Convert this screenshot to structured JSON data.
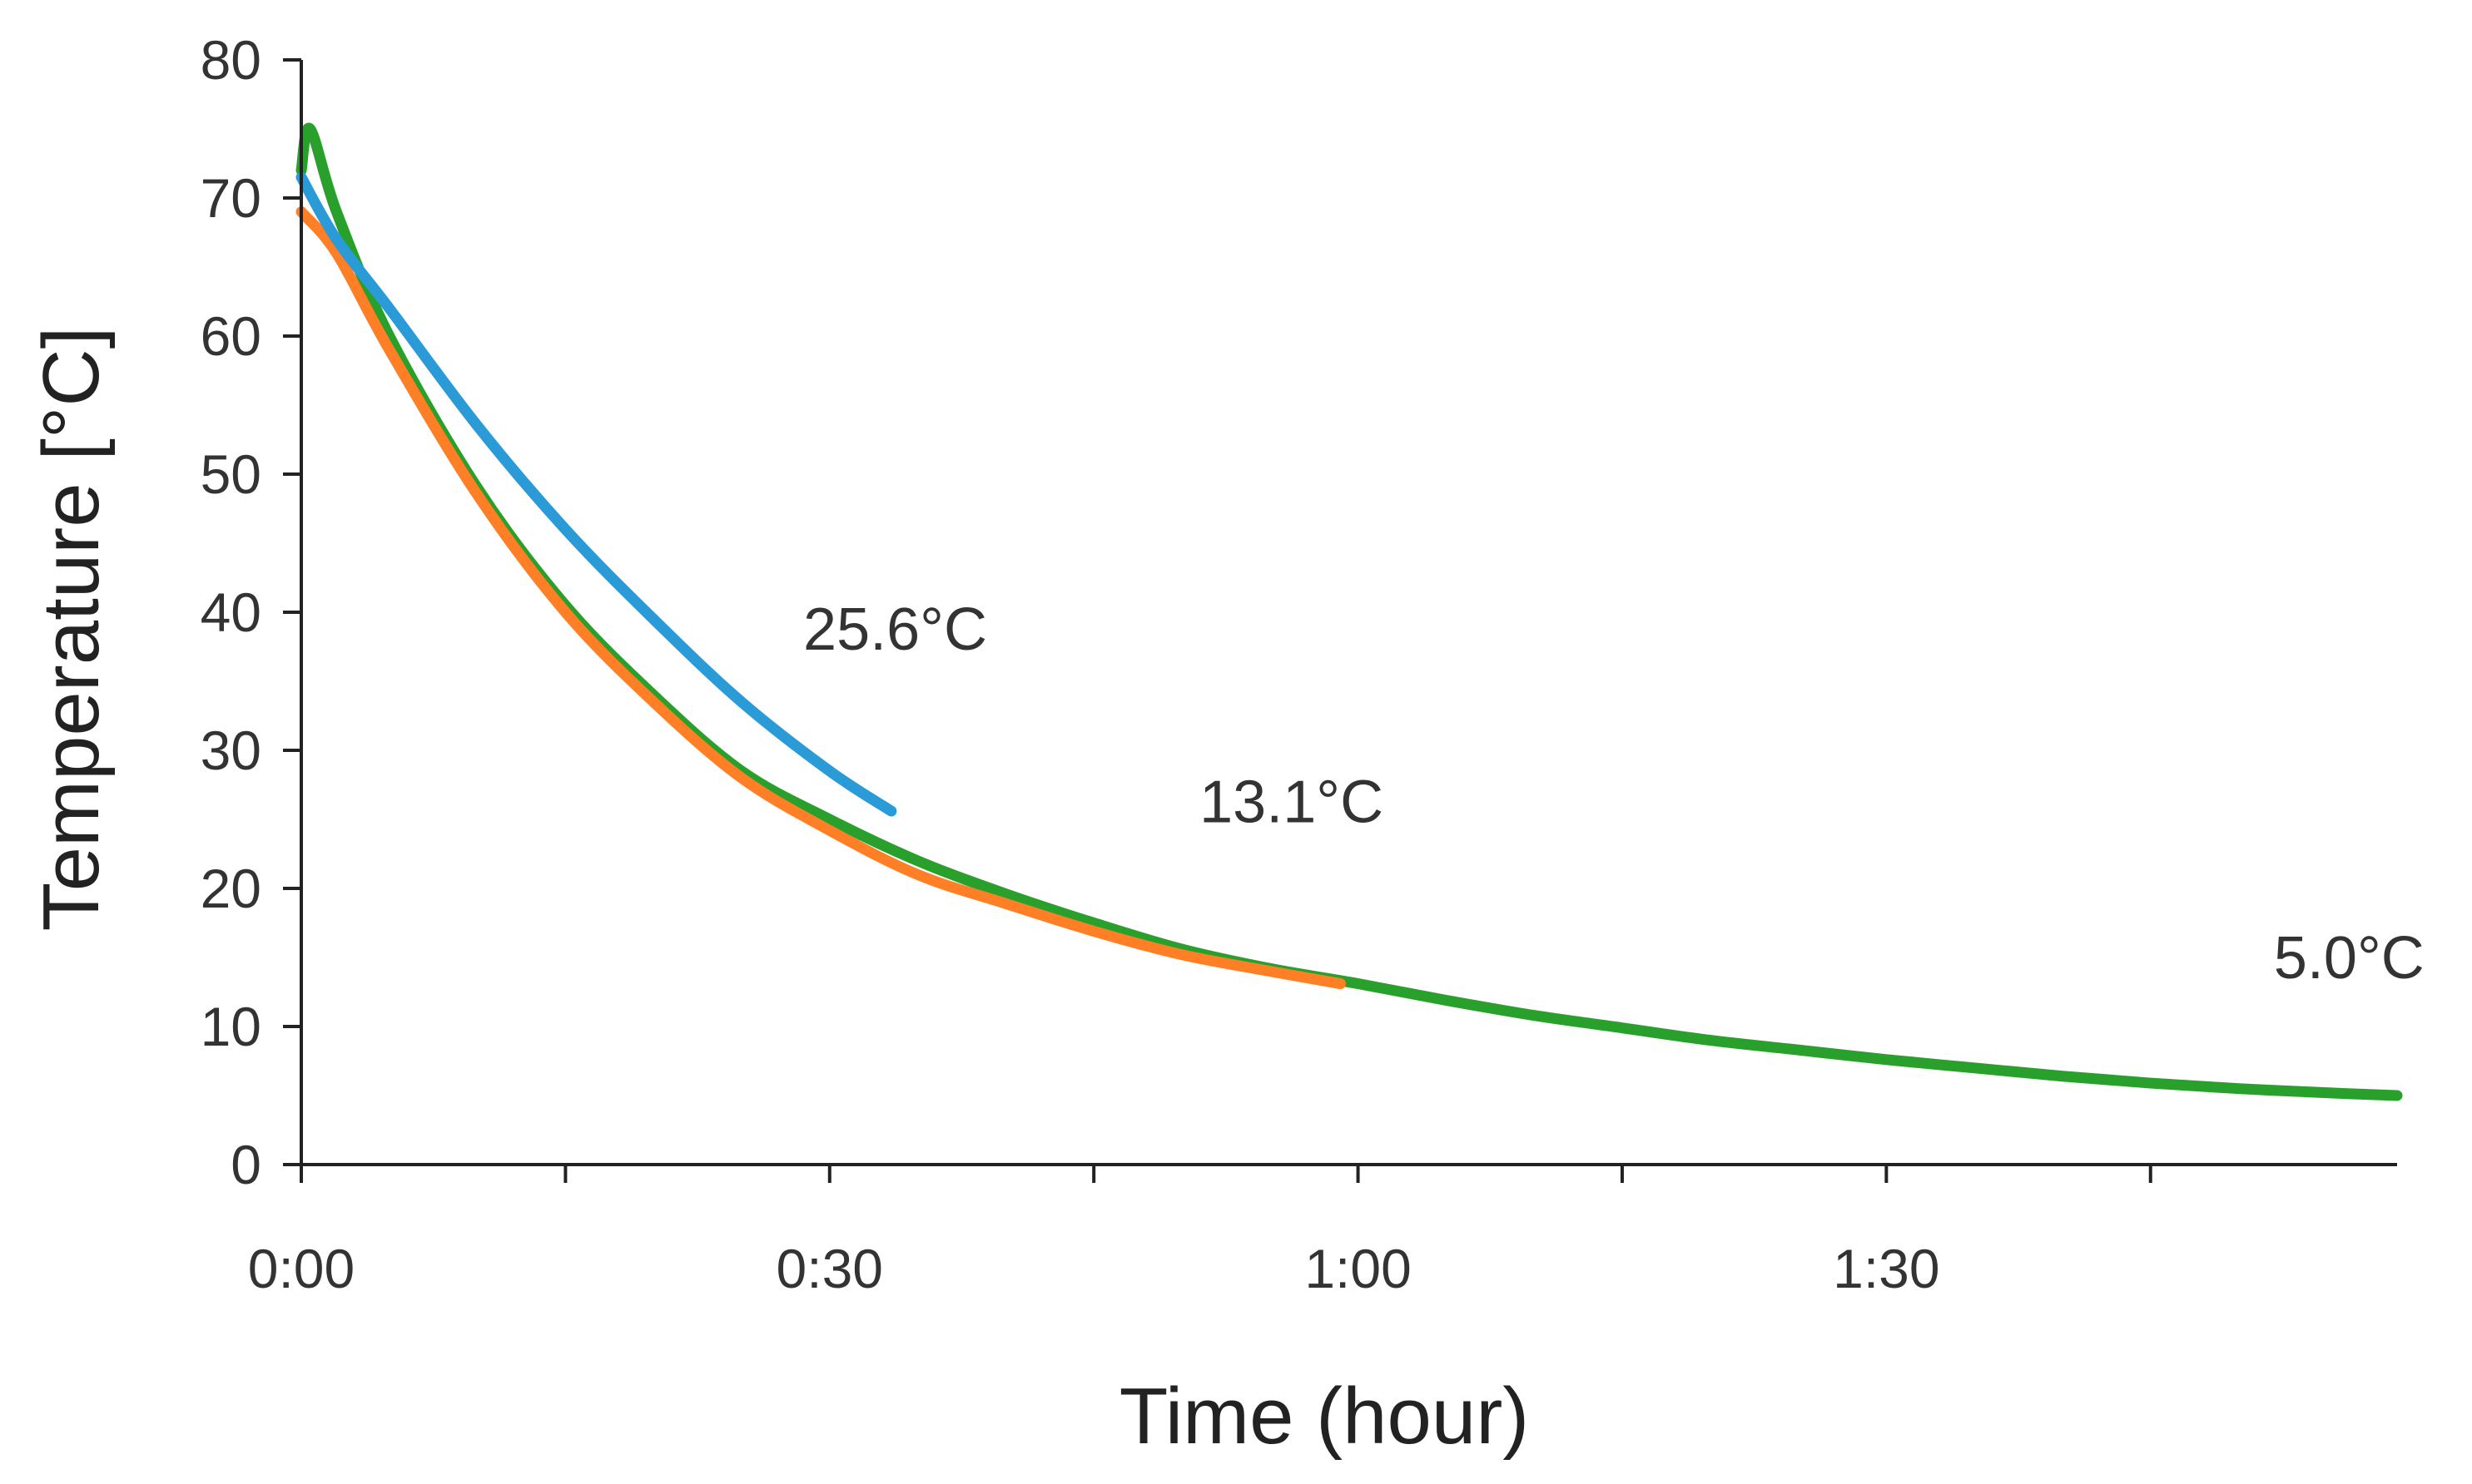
{
  "chart_data": {
    "type": "line",
    "title": "",
    "xlabel": "Time (hour)",
    "ylabel": "Temperature [°C]",
    "x_unit": "minutes",
    "xlim": [
      0,
      119
    ],
    "ylim": [
      0,
      80
    ],
    "x_ticks": [
      {
        "value": 0,
        "label": "0:00"
      },
      {
        "value": 15,
        "label": ""
      },
      {
        "value": 30,
        "label": "0:30"
      },
      {
        "value": 45,
        "label": ""
      },
      {
        "value": 60,
        "label": "1:00"
      },
      {
        "value": 75,
        "label": ""
      },
      {
        "value": 90,
        "label": "1:30"
      },
      {
        "value": 105,
        "label": ""
      }
    ],
    "y_ticks": [
      0,
      10,
      20,
      30,
      40,
      50,
      60,
      70,
      80
    ],
    "grid": false,
    "legend": "none",
    "series": [
      {
        "color": "#2aa02c",
        "x": [
          0,
          0.5,
          2,
          5,
          10,
          15,
          20,
          25,
          30,
          35,
          40,
          45,
          50,
          55,
          60,
          65,
          70,
          75,
          80,
          85,
          90,
          95,
          100,
          105,
          110,
          115,
          119
        ],
        "y": [
          72,
          75,
          69,
          60,
          49,
          40.5,
          34,
          28.5,
          25,
          22,
          19.6,
          17.5,
          15.6,
          14.2,
          13.1,
          11.9,
          10.8,
          9.9,
          9.0,
          8.3,
          7.6,
          7.0,
          6.4,
          5.9,
          5.5,
          5.2,
          5.0
        ]
      },
      {
        "color": "#ff7f27",
        "x": [
          0,
          2,
          5,
          10,
          15,
          20,
          25,
          30,
          35,
          40,
          45,
          50,
          55,
          59
        ],
        "y": [
          69,
          66,
          59,
          48.5,
          40,
          33.5,
          28,
          24.2,
          21,
          18.9,
          16.9,
          15.2,
          14.0,
          13.1
        ]
      },
      {
        "color": "#2b9bd8",
        "x": [
          0,
          2,
          5,
          10,
          15,
          20,
          25,
          30,
          33.5
        ],
        "y": [
          71.5,
          67,
          62,
          53.5,
          46,
          39.5,
          33.5,
          28.5,
          25.6
        ]
      }
    ],
    "annotations": [
      {
        "text": "25.6°C",
        "x": 28.5,
        "y": 37.3
      },
      {
        "text": "13.1°C",
        "x": 51,
        "y": 24.8
      },
      {
        "text": "5.0°C",
        "x": 112,
        "y": 13.5
      }
    ]
  }
}
